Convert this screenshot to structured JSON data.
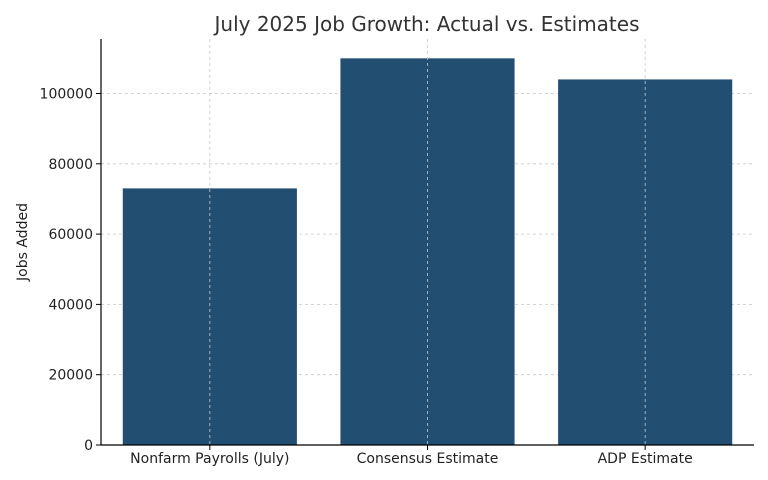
{
  "chart_data": {
    "type": "bar",
    "title": "July 2025 Job Growth: Actual vs. Estimates",
    "xlabel": "",
    "ylabel": "Jobs Added",
    "categories": [
      "Nonfarm Payrolls (July)",
      "Consensus Estimate",
      "ADP Estimate"
    ],
    "values": [
      73000,
      110000,
      104000
    ],
    "ylim": [
      0,
      115500
    ],
    "yticks": [
      0,
      20000,
      40000,
      60000,
      80000,
      100000
    ],
    "ytick_labels": [
      "0",
      "20000",
      "40000",
      "60000",
      "80000",
      "100000"
    ],
    "bar_color": "#224e72",
    "grid": true,
    "legend": "none"
  }
}
